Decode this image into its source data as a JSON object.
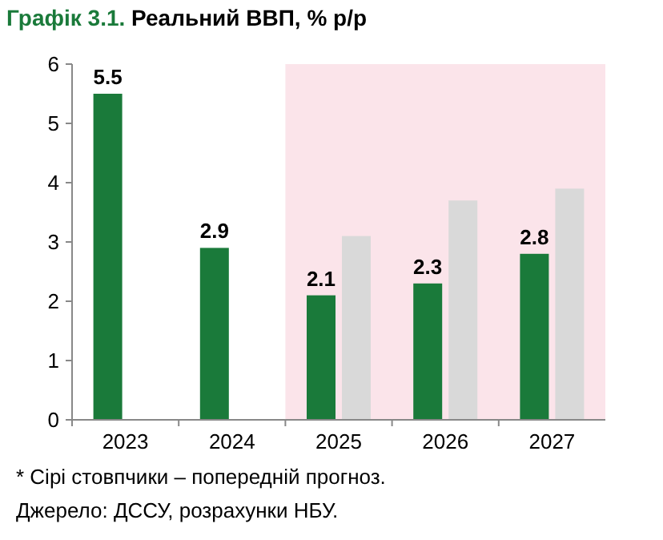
{
  "chart_data": {
    "type": "bar",
    "title": "Графік 3.1. Реальний ВВП, % р/р",
    "categories": [
      "2023",
      "2024",
      "2025",
      "2026",
      "2027"
    ],
    "series": [
      {
        "color": "#1a7a3a",
        "values": [
          5.5,
          2.9,
          2.1,
          2.3,
          2.8
        ],
        "value_labels": [
          "5.5",
          "2.9",
          "2.1",
          "2.3",
          "2.8"
        ]
      },
      {
        "color": "#d9d9d9",
        "values": [
          null,
          null,
          3.1,
          3.7,
          3.9
        ]
      }
    ],
    "ylim": [
      0,
      6
    ],
    "yticks": [
      0,
      1,
      2,
      3,
      4,
      5,
      6
    ],
    "grid": false,
    "bands": [
      {
        "axis": "x",
        "from": "2025",
        "to": "2027",
        "color": "#fbe4ea"
      }
    ],
    "annotations": [
      "* Сірі стовпчики – попередній прогноз.",
      "Джерело: ДССУ, розрахунки НБУ."
    ]
  }
}
